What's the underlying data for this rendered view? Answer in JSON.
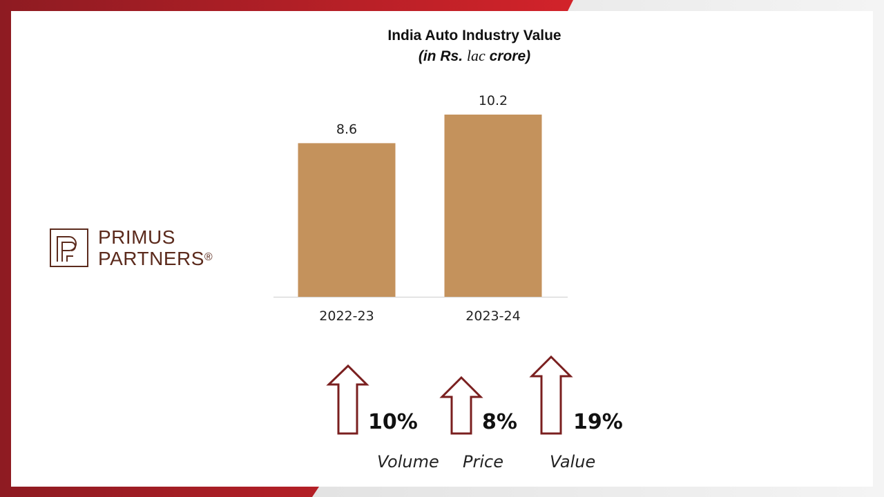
{
  "colors": {
    "bar": "#c4925c",
    "accent": "#c0202a",
    "arrow": "#7a1f1f",
    "brand": "#5b2a1c"
  },
  "logo": {
    "name_line1": "PRIMUS",
    "name_line2": "PARTNERS",
    "registered": "®"
  },
  "chart_data": {
    "type": "bar",
    "title": "India Auto Industry Value",
    "subtitle_prefix": "(in Rs. ",
    "subtitle_unit": "lac",
    "subtitle_suffix": " crore)",
    "categories": [
      "2022-23",
      "2023-24"
    ],
    "values": [
      8.6,
      10.2
    ],
    "value_labels": [
      "8.6",
      "10.2"
    ],
    "ylim": [
      0,
      12
    ],
    "xlabel": "",
    "ylabel": ""
  },
  "growth": [
    {
      "value": "10%",
      "label": "Volume"
    },
    {
      "value": "8%",
      "label": "Price"
    },
    {
      "value": "19%",
      "label": "Value"
    }
  ]
}
